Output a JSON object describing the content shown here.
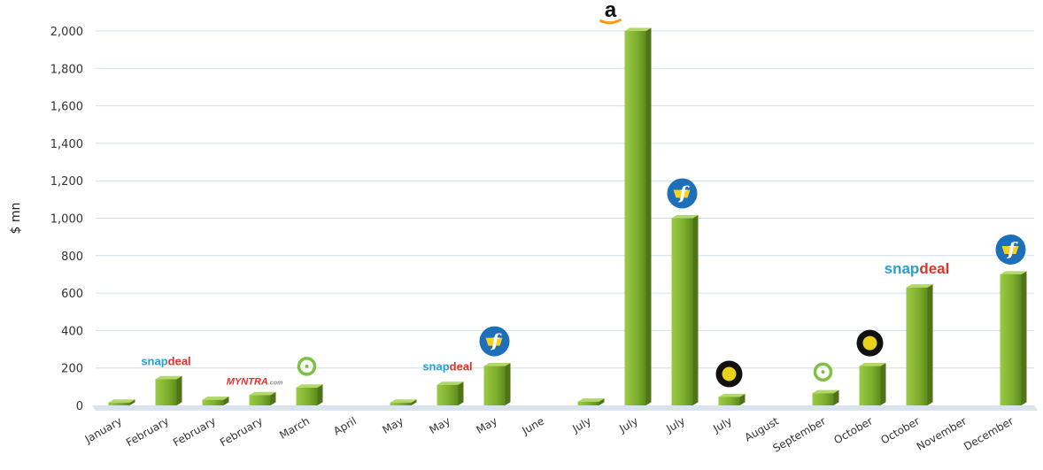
{
  "chart_data": {
    "type": "bar",
    "ylabel": "$ mn",
    "ylim": [
      0,
      2000
    ],
    "yticks": [
      "0",
      "200",
      "400",
      "600",
      "800",
      "1,000",
      "1,200",
      "1,400",
      "1,600",
      "1,800",
      "2,000"
    ],
    "grid": true,
    "categories": [
      "January",
      "February",
      "February",
      "February",
      "March",
      "April",
      "May",
      "May",
      "May",
      "June",
      "July",
      "July",
      "July",
      "July",
      "August",
      "September",
      "October",
      "October",
      "November",
      "December"
    ],
    "values": [
      15,
      140,
      30,
      55,
      95,
      0,
      15,
      110,
      210,
      0,
      20,
      2000,
      1000,
      45,
      0,
      65,
      210,
      630,
      0,
      700
    ],
    "bar_color": "#7cad2c",
    "logos": [
      {
        "index": 1,
        "text_a": "snap",
        "text_b": "deal",
        "kind": "snapdeal"
      },
      {
        "index": 3,
        "text_a": "MYNTRA",
        "text_b": ".com",
        "kind": "myntra"
      },
      {
        "index": 4,
        "text_a": "",
        "text_b": "",
        "kind": "ring-icon"
      },
      {
        "index": 7,
        "text_a": "snap",
        "text_b": "deal",
        "kind": "snapdeal"
      },
      {
        "index": 8,
        "text_a": "f",
        "text_b": "",
        "kind": "flipkart-icon"
      },
      {
        "index": 11,
        "text_a": "a",
        "text_b": "",
        "kind": "amazon-icon"
      },
      {
        "index": 12,
        "text_a": "f",
        "text_b": "",
        "kind": "flipkart-icon"
      },
      {
        "index": 13,
        "text_a": "",
        "text_b": "",
        "kind": "ola-icon"
      },
      {
        "index": 15,
        "text_a": "",
        "text_b": "",
        "kind": "ring-icon"
      },
      {
        "index": 16,
        "text_a": "",
        "text_b": "",
        "kind": "ola-icon"
      },
      {
        "index": 17,
        "text_a": "snap",
        "text_b": "deal",
        "kind": "snapdeal"
      },
      {
        "index": 19,
        "text_a": "f",
        "text_b": "",
        "kind": "flipkart-icon"
      }
    ],
    "colors": {
      "snap": "#2a9fd6",
      "deal": "#e4322b",
      "flipkart": "#1c6fb8",
      "ring": "#7cc242",
      "ola": "#e8d21a"
    }
  }
}
